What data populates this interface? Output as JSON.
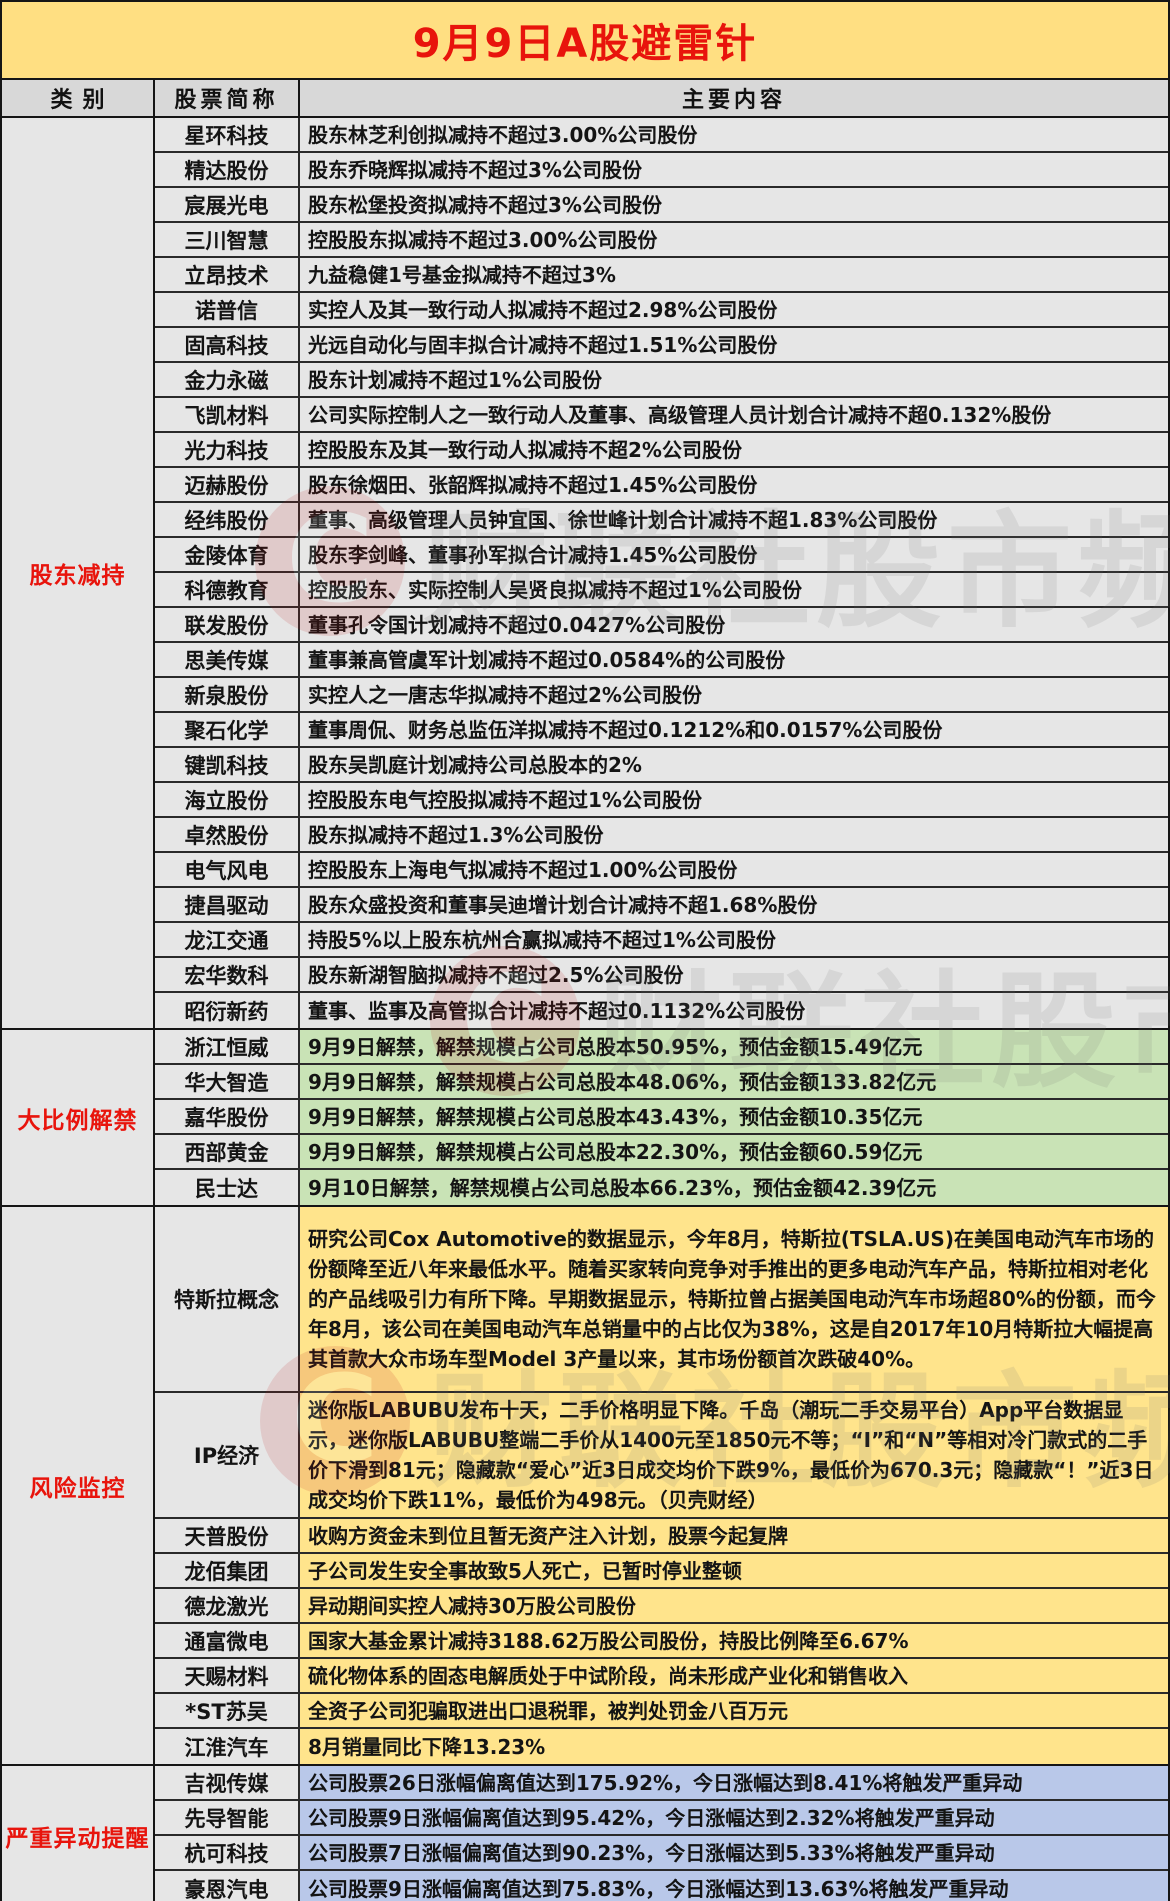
{
  "title": "9月9日A股避雷针",
  "columns": {
    "category": "类别",
    "stock": "股票简称",
    "main": "主要内容"
  },
  "colors": {
    "title_bg": "#ffdf82",
    "title_text": "#e8140c",
    "header_bg": "#d8d8d8",
    "gray_row": "#e6e6e6",
    "green_row": "#c9e3b6",
    "yellow_row": "#ffe48c",
    "blue_row": "#b9c8e9",
    "category_text": "#e8140c",
    "border": "#151515"
  },
  "watermark": {
    "logo_letter": "C",
    "text": "财联社股市频道"
  },
  "sections": [
    {
      "category": "股东减持",
      "type": "gray",
      "rows": [
        {
          "name": "星环科技",
          "content": "股东林芝利创拟减持不超过3.00%公司股份"
        },
        {
          "name": "精达股份",
          "content": "股东乔晓辉拟减持不超过3%公司股份"
        },
        {
          "name": "宸展光电",
          "content": "股东松堡投资拟减持不超过3%公司股份"
        },
        {
          "name": "三川智慧",
          "content": "控股股东拟减持不超过3.00%公司股份"
        },
        {
          "name": "立昂技术",
          "content": "九益稳健1号基金拟减持不超过3%"
        },
        {
          "name": "诺普信",
          "content": "实控人及其一致行动人拟减持不超过2.98%公司股份"
        },
        {
          "name": "固高科技",
          "content": "光远自动化与固丰拟合计减持不超过1.51%公司股份"
        },
        {
          "name": "金力永磁",
          "content": "股东计划减持不超过1%公司股份"
        },
        {
          "name": "飞凯材料",
          "content": "公司实际控制人之一致行动人及董事、高级管理人员计划合计减持不超0.132%股份"
        },
        {
          "name": "光力科技",
          "content": "控股股东及其一致行动人拟减持不超2%公司股份"
        },
        {
          "name": "迈赫股份",
          "content": "股东徐烟田、张韶辉拟减持不超过1.45%公司股份"
        },
        {
          "name": "经纬股份",
          "content": "董事、高级管理人员钟宜国、徐世峰计划合计减持不超1.83%公司股份"
        },
        {
          "name": "金陵体育",
          "content": "股东李剑峰、董事孙军拟合计减持1.45%公司股份"
        },
        {
          "name": "科德教育",
          "content": "控股股东、实际控制人吴贤良拟减持不超过1%公司股份"
        },
        {
          "name": "联发股份",
          "content": "董事孔令国计划减持不超过0.0427%公司股份"
        },
        {
          "name": "思美传媒",
          "content": "董事兼高管虞军计划减持不超过0.0584%的公司股份"
        },
        {
          "name": "新泉股份",
          "content": "实控人之一唐志华拟减持不超过2%公司股份"
        },
        {
          "name": "聚石化学",
          "content": "董事周侃、财务总监伍洋拟减持不超过0.1212%和0.0157%公司股份"
        },
        {
          "name": "键凯科技",
          "content": "股东吴凯庭计划减持公司总股本的2%"
        },
        {
          "name": "海立股份",
          "content": "控股股东电气控股拟减持不超过1%公司股份"
        },
        {
          "name": "卓然股份",
          "content": "股东拟减持不超过1.3%公司股份"
        },
        {
          "name": "电气风电",
          "content": "控股股东上海电气拟减持不超过1.00%公司股份"
        },
        {
          "name": "捷昌驱动",
          "content": "股东众盛投资和董事吴迪增计划合计减持不超1.68%股份"
        },
        {
          "name": "龙江交通",
          "content": "持股5%以上股东杭州合赢拟减持不超过1%公司股份"
        },
        {
          "name": "宏华数科",
          "content": "股东新湖智脑拟减持不超过2.5%公司股份"
        },
        {
          "name": "昭衍新药",
          "content": "董事、监事及高管拟合计减持不超过0.1132%公司股份"
        }
      ]
    },
    {
      "category": "大比例解禁",
      "type": "green",
      "rows": [
        {
          "name": "浙江恒威",
          "content": "9月9日解禁，解禁规模占公司总股本50.95%，预估金额15.49亿元"
        },
        {
          "name": "华大智造",
          "content": "9月9日解禁，解禁规模占公司总股本48.06%，预估金额133.82亿元"
        },
        {
          "name": "嘉华股份",
          "content": "9月9日解禁，解禁规模占公司总股本43.43%，预估金额10.35亿元"
        },
        {
          "name": "西部黄金",
          "content": "9月9日解禁，解禁规模占公司总股本22.30%，预估金额60.59亿元"
        },
        {
          "name": "民士达",
          "content": "9月10日解禁，解禁规模占公司总股本66.23%，预估金额42.39亿元"
        }
      ]
    },
    {
      "category": "风险监控",
      "type": "yellow",
      "rows": [
        {
          "name": "特斯拉概念",
          "lines": 6,
          "content": "研究公司Cox Automotive的数据显示，今年8月，特斯拉(TSLA.US)在美国电动汽车市场的份额降至近八年来最低水平。随着买家转向竞争对手推出的更多电动汽车产品，特斯拉相对老化的产品线吸引力有所下降。早期数据显示，特斯拉曾占据美国电动汽车市场超80%的份额，而今年8月，该公司在美国电动汽车总销量中的占比仅为38%，这是自2017年10月特斯拉大幅提高其首款大众市场车型Model 3产量以来，其市场份额首次跌破40%。"
        },
        {
          "name": "IP经济",
          "lines": 4,
          "content": "迷你版LABUBU发布十天，二手价格明显下降。千岛（潮玩二手交易平台）App平台数据显示，迷你版LABUBU整端二手价从1400元至1850元不等；“I”和“N”等相对冷门款式的二手价下滑到81元；隐藏款“爱心”近3日成交均价下跌9%，最低价为670.3元；隐藏款“！”近3日成交均价下跌11%，最低价为498元。（贝壳财经）"
        },
        {
          "name": "天普股份",
          "content": "收购方资金未到位且暂无资产注入计划，股票今起复牌"
        },
        {
          "name": "龙佰集团",
          "content": "子公司发生安全事故致5人死亡，已暂时停业整顿"
        },
        {
          "name": "德龙激光",
          "content": "异动期间实控人减持30万股公司股份"
        },
        {
          "name": "通富微电",
          "content": "国家大基金累计减持3188.62万股公司股份，持股比例降至6.67%"
        },
        {
          "name": "天赐材料",
          "content": "硫化物体系的固态电解质处于中试阶段，尚未形成产业化和销售收入"
        },
        {
          "name": "*ST苏吴",
          "content": "全资子公司犯骗取进出口退税罪，被判处罚金八百万元"
        },
        {
          "name": "江淮汽车",
          "content": "8月销量同比下降13.23%"
        }
      ]
    },
    {
      "category": "严重异动提醒",
      "type": "blue",
      "rows": [
        {
          "name": "吉视传媒",
          "content": "公司股票26日涨幅偏离值达到175.92%，今日涨幅达到8.41%将触发严重异动"
        },
        {
          "name": "先导智能",
          "content": "公司股票9日涨幅偏离值达到95.42%，今日涨幅达到2.32%将触发严重异动"
        },
        {
          "name": "杭可科技",
          "content": "公司股票7日涨幅偏离值达到90.23%，今日涨幅达到5.33%将触发严重异动"
        },
        {
          "name": "豪恩汽电",
          "content": "公司股票9日涨幅偏离值达到75.83%，今日涨幅达到13.63%将触发严重异动"
        }
      ]
    }
  ]
}
